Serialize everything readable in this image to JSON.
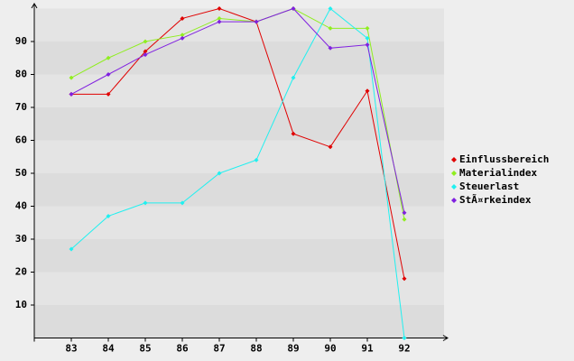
{
  "chart_data": {
    "type": "line",
    "categories": [
      "83",
      "84",
      "85",
      "86",
      "87",
      "88",
      "89",
      "90",
      "91",
      "92"
    ],
    "series": [
      {
        "name": "Einflussbereich",
        "color": "#e00000",
        "values": [
          74,
          74,
          87,
          97,
          100,
          96,
          62,
          58,
          75,
          18
        ]
      },
      {
        "name": "Materialindex",
        "color": "#90ee20",
        "values": [
          79,
          85,
          90,
          92,
          97,
          96,
          100,
          94,
          94,
          36
        ]
      },
      {
        "name": "Steuerlast",
        "color": "#20f0f0",
        "values": [
          27,
          37,
          41,
          41,
          50,
          54,
          79,
          100,
          91,
          0
        ]
      },
      {
        "name": "StÃ¤rkeindex",
        "color": "#8020e0",
        "values": [
          74,
          80,
          86,
          91,
          96,
          96,
          100,
          88,
          89,
          38
        ]
      }
    ],
    "ylim": [
      0,
      100
    ],
    "yticks": [
      10,
      20,
      30,
      40,
      50,
      60,
      70,
      80,
      90
    ],
    "grid": true,
    "legend": "right"
  }
}
